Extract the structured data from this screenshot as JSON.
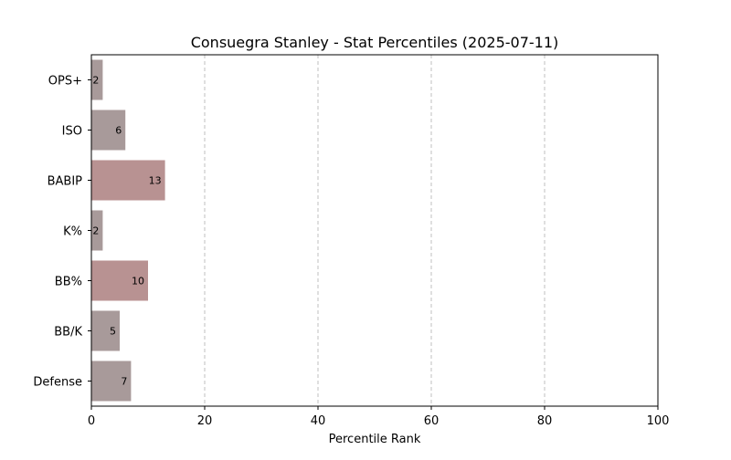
{
  "chart_data": {
    "type": "bar",
    "orientation": "horizontal",
    "title": "Consuegra Stanley - Stat Percentiles (2025-07-11)",
    "xlabel": "Percentile Rank",
    "ylabel": "",
    "xlim": [
      0,
      100
    ],
    "xticks": [
      0,
      20,
      40,
      60,
      80,
      100
    ],
    "grid": "x-dashed",
    "categories": [
      "OPS+",
      "ISO",
      "BABIP",
      "K%",
      "BB%",
      "BB/K",
      "Defense"
    ],
    "values": [
      2,
      6,
      13,
      2,
      10,
      5,
      7
    ],
    "data_labels": [
      "2",
      "6",
      "13",
      "2",
      "10",
      "5",
      "7"
    ],
    "bar_colors": [
      "#a89a9a",
      "#a89a9a",
      "#b89292",
      "#a89a9a",
      "#b89292",
      "#a89a9a",
      "#a89a9a"
    ],
    "grid_color": "#bfbfbf",
    "axis_color": "#000000"
  }
}
